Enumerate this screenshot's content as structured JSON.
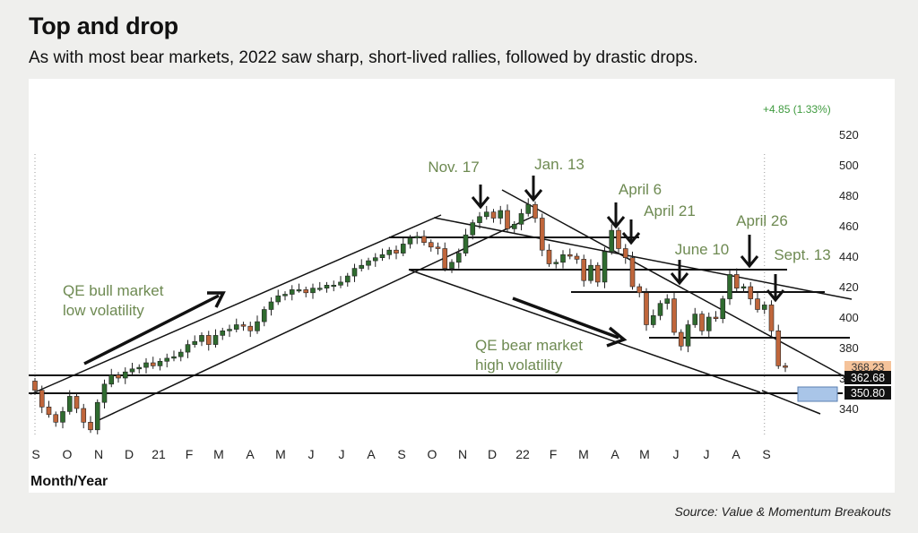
{
  "title": "Top and drop",
  "subtitle": "As with most bear markets, 2022 saw sharp, short-lived rallies, followed by drastic drops.",
  "source": "Source: Value & Momentum Breakouts",
  "colors": {
    "up_candle": "#2f6b2f",
    "down_candle": "#c0663b",
    "annotation_text": "#6e8a52",
    "change_text": "#3e9a3e",
    "price_tag_orange": "#f5c39a",
    "projection_box": "#a9c5e8"
  },
  "chart_data": {
    "type": "candlestick",
    "title": "Top and drop",
    "xlabel": "Month/Year",
    "ylabel": "",
    "ylim": [
      325,
      530
    ],
    "y_ticks": [
      340,
      360,
      380,
      400,
      420,
      440,
      460,
      480,
      500,
      520
    ],
    "x_tick_labels": [
      "S",
      "O",
      "N",
      "D",
      "21",
      "F",
      "M",
      "A",
      "M",
      "J",
      "J",
      "A",
      "S",
      "O",
      "N",
      "D",
      "22",
      "F",
      "M",
      "A",
      "M",
      "J",
      "J",
      "A",
      "S"
    ],
    "change_label": "+4.85 (1.33%)",
    "price_tags": [
      "368.23",
      "362.68",
      "350.80"
    ],
    "annotations": [
      {
        "text": "Nov. 17",
        "week": 63,
        "value": 470
      },
      {
        "text": "Jan. 13",
        "week": 71,
        "value": 478
      },
      {
        "text": "April 6",
        "week": 83,
        "value": 459
      },
      {
        "text": "April 21",
        "week": 85,
        "value": 453
      },
      {
        "text": "June 10",
        "week": 92,
        "value": 431
      },
      {
        "text": "April 26",
        "week": 102,
        "value": 431
      },
      {
        "text": "Sept. 13",
        "week": 105,
        "value": 415
      }
    ],
    "text_notes": [
      {
        "text": "QE bull market",
        "line": 1
      },
      {
        "text": "low volatility",
        "line": 2
      },
      {
        "text": "QE bear market",
        "line": 1
      },
      {
        "text": "high volatility",
        "line": 2
      }
    ],
    "weekly_close": [
      352,
      341,
      336,
      331,
      338,
      348,
      340,
      331,
      326,
      344,
      356,
      362,
      360,
      364,
      366,
      367,
      370,
      368,
      371,
      373,
      374,
      377,
      382,
      384,
      388,
      382,
      388,
      391,
      392,
      395,
      394,
      391,
      397,
      405,
      410,
      414,
      415,
      418,
      418,
      416,
      419,
      419,
      421,
      421,
      423,
      427,
      432,
      434,
      437,
      439,
      441,
      444,
      442,
      448,
      452,
      453,
      449,
      446,
      445,
      432,
      436,
      442,
      454,
      462,
      466,
      469,
      465,
      470,
      458,
      461,
      468,
      474,
      465,
      444,
      435,
      436,
      441,
      440,
      438,
      424,
      434,
      423,
      443,
      457,
      445,
      439,
      420,
      416,
      395,
      401,
      409,
      412,
      390,
      381,
      395,
      402,
      391,
      400,
      399,
      412,
      428,
      419,
      420,
      412,
      405,
      408,
      391,
      368,
      367
    ]
  }
}
